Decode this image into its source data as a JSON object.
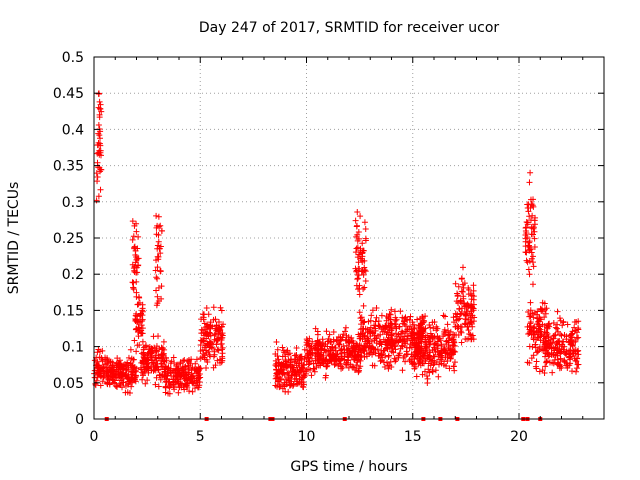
{
  "chart_data": {
    "type": "scatter",
    "title": "Day 247 of 2017, SRMTID for receiver ucor",
    "xlabel": "GPS time / hours",
    "ylabel": "SRMTID / TECUs",
    "xlim": [
      0,
      24
    ],
    "ylim": [
      0,
      0.5
    ],
    "x_ticks": [
      "0",
      "5",
      "10",
      "15",
      "20"
    ],
    "y_ticks": [
      "0",
      "0.05",
      "0.1",
      "0.15",
      "0.2",
      "0.25",
      "0.3",
      "0.35",
      "0.4",
      "0.45",
      "0.5"
    ],
    "grid": true,
    "marker": "+",
    "color": "#ff0000",
    "series": [
      {
        "name": "SRMTID",
        "segments": [
          {
            "x_start": 0.0,
            "x_end": 0.45,
            "base": 0.07,
            "spread": 0.03
          },
          {
            "x_start": 0.1,
            "x_end": 0.35,
            "base": 0.36,
            "spread": 0.07
          },
          {
            "x_start": 0.2,
            "x_end": 0.3,
            "base": 0.43,
            "spread": 0.04
          },
          {
            "x_start": 0.5,
            "x_end": 2.0,
            "base": 0.065,
            "spread": 0.025
          },
          {
            "x_start": 1.8,
            "x_end": 2.1,
            "base": 0.22,
            "spread": 0.06
          },
          {
            "x_start": 1.9,
            "x_end": 2.3,
            "base": 0.13,
            "spread": 0.04
          },
          {
            "x_start": 2.2,
            "x_end": 3.3,
            "base": 0.08,
            "spread": 0.03
          },
          {
            "x_start": 2.9,
            "x_end": 3.2,
            "base": 0.22,
            "spread": 0.08
          },
          {
            "x_start": 3.3,
            "x_end": 5.0,
            "base": 0.06,
            "spread": 0.025
          },
          {
            "x_start": 5.0,
            "x_end": 6.1,
            "base": 0.11,
            "spread": 0.04
          },
          {
            "x_start": 8.5,
            "x_end": 10.0,
            "base": 0.07,
            "spread": 0.03
          },
          {
            "x_start": 10.0,
            "x_end": 12.5,
            "base": 0.09,
            "spread": 0.03
          },
          {
            "x_start": 12.3,
            "x_end": 12.8,
            "base": 0.22,
            "spread": 0.06
          },
          {
            "x_start": 12.5,
            "x_end": 15.5,
            "base": 0.11,
            "spread": 0.04
          },
          {
            "x_start": 15.0,
            "x_end": 17.0,
            "base": 0.1,
            "spread": 0.04
          },
          {
            "x_start": 17.0,
            "x_end": 17.9,
            "base": 0.15,
            "spread": 0.05
          },
          {
            "x_start": 20.3,
            "x_end": 20.8,
            "base": 0.26,
            "spread": 0.08
          },
          {
            "x_start": 20.4,
            "x_end": 21.3,
            "base": 0.12,
            "spread": 0.05
          },
          {
            "x_start": 21.2,
            "x_end": 22.8,
            "base": 0.1,
            "spread": 0.04
          }
        ]
      }
    ],
    "gap_markers_x": [
      0.6,
      5.3,
      8.3,
      8.4,
      11.8,
      15.5,
      16.3,
      17.1,
      20.2,
      20.4,
      21.0
    ]
  }
}
